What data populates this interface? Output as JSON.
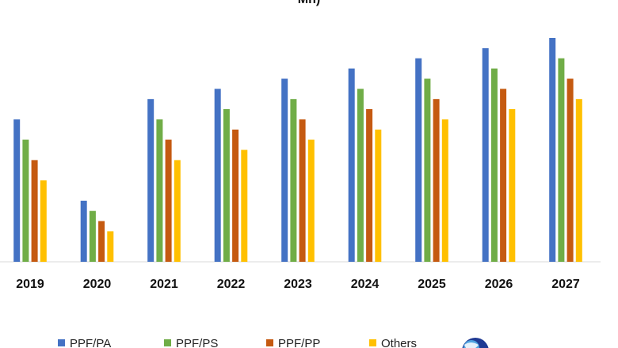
{
  "chart_data": {
    "type": "bar",
    "title": "Mn)",
    "categories": [
      "2019",
      "2020",
      "2021",
      "2022",
      "2023",
      "2024",
      "2025",
      "2026",
      "2027"
    ],
    "series": [
      {
        "name": "PPF/PA",
        "color": "#4472C4",
        "values": [
          14.0,
          6.0,
          16.0,
          17.0,
          18.0,
          19.0,
          20.0,
          21.0,
          22.0
        ]
      },
      {
        "name": "PPF/PS",
        "color": "#70AD47",
        "values": [
          12.0,
          5.0,
          14.0,
          15.0,
          16.0,
          17.0,
          18.0,
          19.0,
          20.0
        ]
      },
      {
        "name": "PPF/PP",
        "color": "#C55A11",
        "values": [
          10.0,
          4.0,
          12.0,
          13.0,
          14.0,
          15.0,
          16.0,
          17.0,
          18.0
        ]
      },
      {
        "name": "Others",
        "color": "#FFC000",
        "values": [
          8.0,
          3.0,
          10.0,
          11.0,
          12.0,
          13.0,
          14.0,
          15.0,
          16.0
        ]
      }
    ],
    "ylim": [
      0,
      22
    ],
    "grid": false,
    "legend": "bottom"
  },
  "logo": {
    "icon": "globe-logo-icon"
  }
}
